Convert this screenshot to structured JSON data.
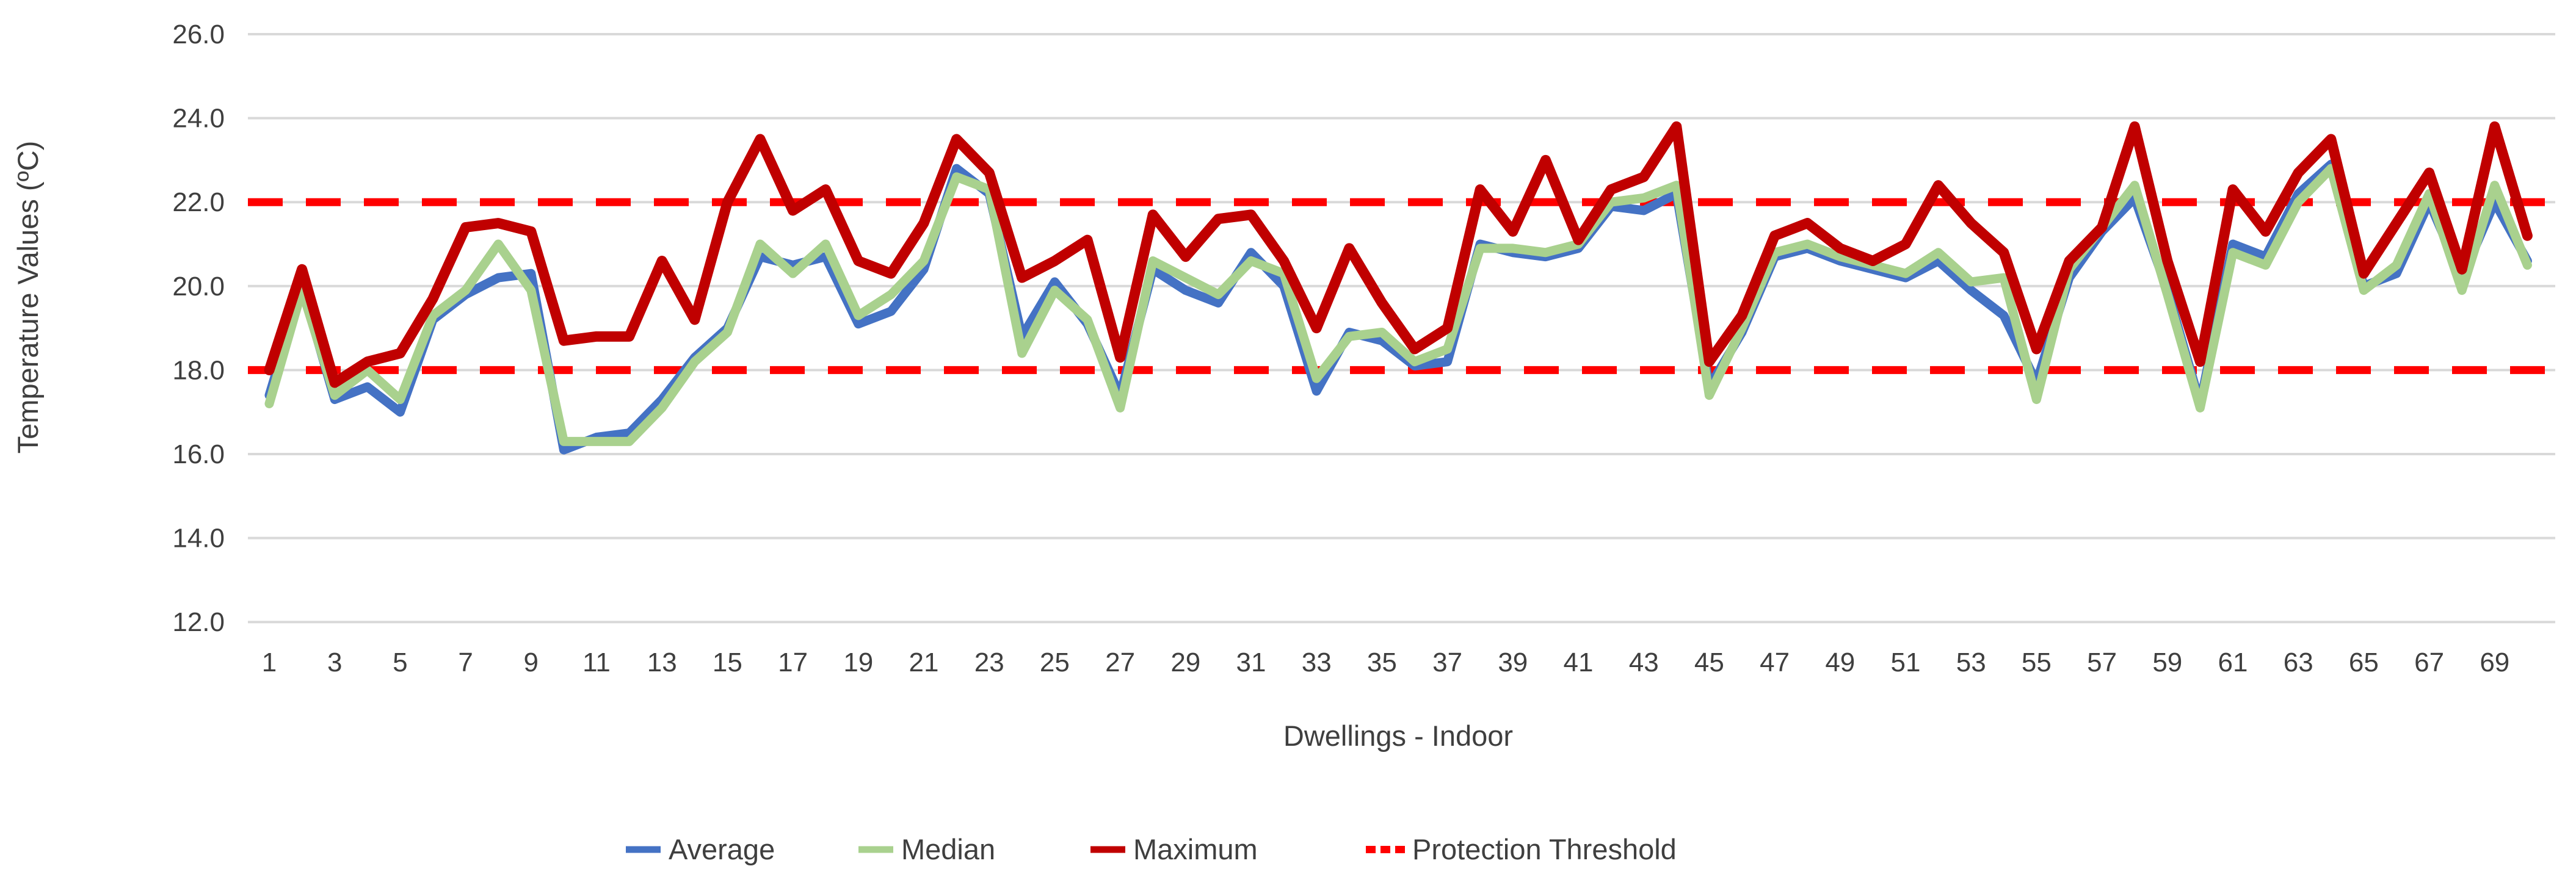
{
  "chart_data": {
    "type": "line",
    "title": "",
    "xlabel": "Dwellings - Indoor",
    "ylabel": "Temperature Values (ºC)",
    "ylim": [
      12.0,
      26.0
    ],
    "y_tick_step": 2.0,
    "y_tick_labels": [
      "26.0",
      "24.0",
      "22.0",
      "20.0",
      "18.0",
      "16.0",
      "14.0",
      "12.0"
    ],
    "x_tick_labels_shown": [
      "1",
      "3",
      "5",
      "7",
      "9",
      "11",
      "13",
      "15",
      "17",
      "19",
      "21",
      "23",
      "25",
      "27",
      "29",
      "31",
      "33",
      "35",
      "37",
      "39",
      "41",
      "43",
      "45",
      "47",
      "49",
      "51",
      "53",
      "55",
      "57",
      "59",
      "61",
      "63",
      "65",
      "67",
      "69"
    ],
    "grid": true,
    "gridline_color": "#d9d9d9",
    "legend_position": "bottom",
    "x": [
      1,
      2,
      3,
      4,
      5,
      6,
      7,
      8,
      9,
      10,
      11,
      12,
      13,
      14,
      15,
      16,
      17,
      18,
      19,
      20,
      21,
      22,
      23,
      24,
      25,
      26,
      27,
      28,
      29,
      30,
      31,
      32,
      33,
      34,
      35,
      36,
      37,
      38,
      39,
      40,
      41,
      42,
      43,
      44,
      45,
      46,
      47,
      48,
      49,
      50,
      51,
      52,
      53,
      54,
      55,
      56,
      57,
      58,
      59,
      60,
      61,
      62,
      63,
      64,
      65,
      66,
      67,
      68,
      69,
      70
    ],
    "series": [
      {
        "name": "Average",
        "color": "#4472c4",
        "style": "solid",
        "values": [
          17.4,
          20.0,
          17.3,
          17.6,
          17.0,
          19.2,
          19.8,
          20.2,
          20.3,
          16.1,
          16.4,
          16.5,
          17.3,
          18.3,
          19.0,
          20.7,
          20.5,
          20.7,
          19.1,
          19.4,
          20.4,
          22.8,
          22.2,
          18.8,
          20.1,
          19.1,
          17.4,
          20.4,
          19.9,
          19.6,
          20.8,
          20.0,
          17.5,
          18.9,
          18.7,
          18.1,
          18.2,
          21.0,
          20.8,
          20.7,
          20.9,
          21.9,
          21.8,
          22.2,
          17.6,
          18.9,
          20.7,
          20.9,
          20.6,
          20.4,
          20.2,
          20.6,
          19.9,
          19.3,
          17.7,
          20.2,
          21.3,
          22.1,
          19.9,
          17.2,
          21.0,
          20.7,
          22.2,
          22.9,
          20.0,
          20.3,
          22.0,
          20.2,
          22.0,
          20.6
        ]
      },
      {
        "name": "Median",
        "color": "#a9d18e",
        "style": "solid",
        "values": [
          17.2,
          19.9,
          17.4,
          18.0,
          17.3,
          19.3,
          19.9,
          21.0,
          19.9,
          16.3,
          16.3,
          16.3,
          17.1,
          18.2,
          18.9,
          21.0,
          20.3,
          21.0,
          19.3,
          19.8,
          20.6,
          22.6,
          22.3,
          18.4,
          19.9,
          19.2,
          17.1,
          20.6,
          20.2,
          19.8,
          20.6,
          20.3,
          17.8,
          18.8,
          18.9,
          18.2,
          18.5,
          20.9,
          20.9,
          20.8,
          21.0,
          22.0,
          22.1,
          22.4,
          17.4,
          19.0,
          20.8,
          21.0,
          20.7,
          20.5,
          20.3,
          20.8,
          20.1,
          20.2,
          17.3,
          20.4,
          21.4,
          22.4,
          19.8,
          17.1,
          20.8,
          20.5,
          22.0,
          22.8,
          19.9,
          20.5,
          22.2,
          19.9,
          22.4,
          20.5
        ]
      },
      {
        "name": "Maximum",
        "color": "#c00000",
        "style": "solid",
        "values": [
          18.0,
          20.4,
          17.7,
          18.2,
          18.4,
          19.7,
          21.4,
          21.5,
          21.3,
          18.7,
          18.8,
          18.8,
          20.6,
          19.2,
          22.0,
          23.5,
          21.8,
          22.3,
          20.6,
          20.3,
          21.5,
          23.5,
          22.7,
          20.2,
          20.6,
          21.1,
          18.3,
          21.7,
          20.7,
          21.6,
          21.7,
          20.6,
          19.0,
          20.9,
          19.6,
          18.5,
          19.0,
          22.3,
          21.3,
          23.0,
          21.1,
          22.3,
          22.6,
          23.8,
          18.2,
          19.3,
          21.2,
          21.5,
          20.9,
          20.6,
          21.0,
          22.4,
          21.5,
          20.8,
          18.5,
          20.6,
          21.4,
          23.8,
          20.6,
          18.2,
          22.3,
          21.3,
          22.7,
          23.5,
          20.3,
          21.5,
          22.7,
          20.4,
          23.8,
          21.2
        ]
      }
    ],
    "thresholds": {
      "name": "Protection Threshold",
      "color": "#ff0000",
      "style": "dashed",
      "values": [
        18.0,
        22.0
      ]
    },
    "legend": [
      "Average",
      "Median",
      "Maximum",
      "Protection Threshold"
    ]
  }
}
